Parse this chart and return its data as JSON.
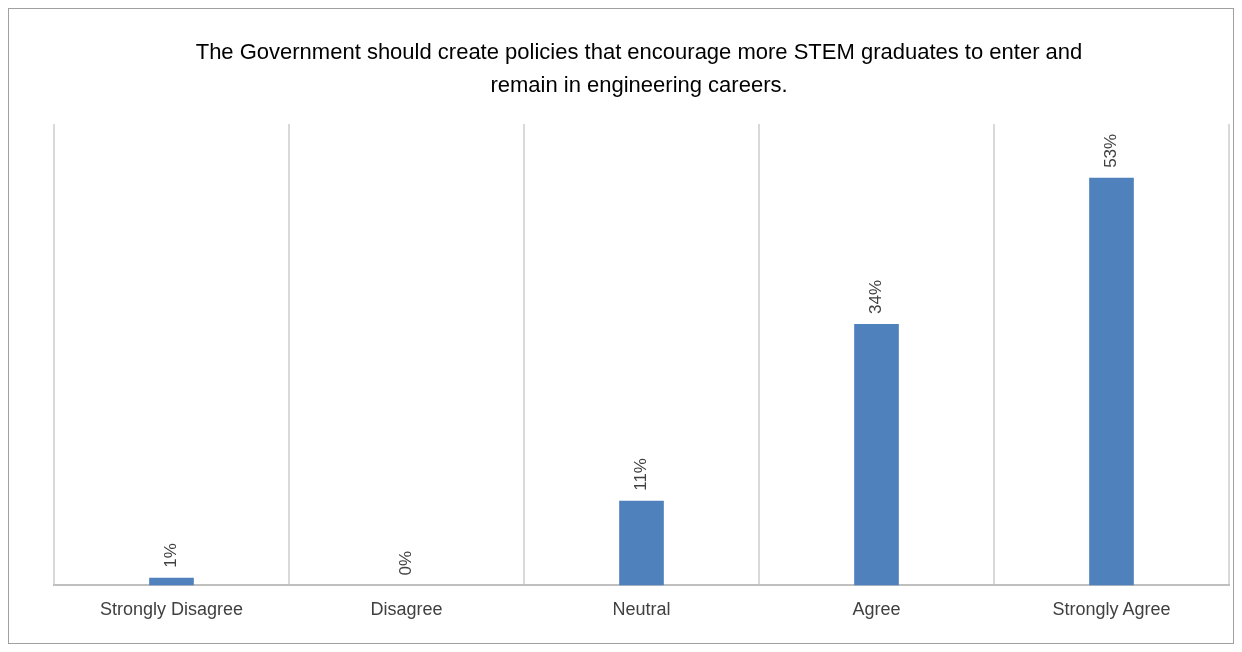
{
  "chart_data": {
    "type": "bar",
    "title": "The Government should create policies that encourage more STEM graduates to enter and remain in engineering careers.",
    "categories": [
      "Strongly Disagree",
      "Disagree",
      "Neutral",
      "Agree",
      "Strongly Agree"
    ],
    "values": [
      1,
      0,
      11,
      34,
      53
    ],
    "value_labels": [
      "1%",
      "0%",
      "11%",
      "34%",
      "53%"
    ],
    "color": "#4f81bd",
    "grid": "x",
    "legend": false
  }
}
